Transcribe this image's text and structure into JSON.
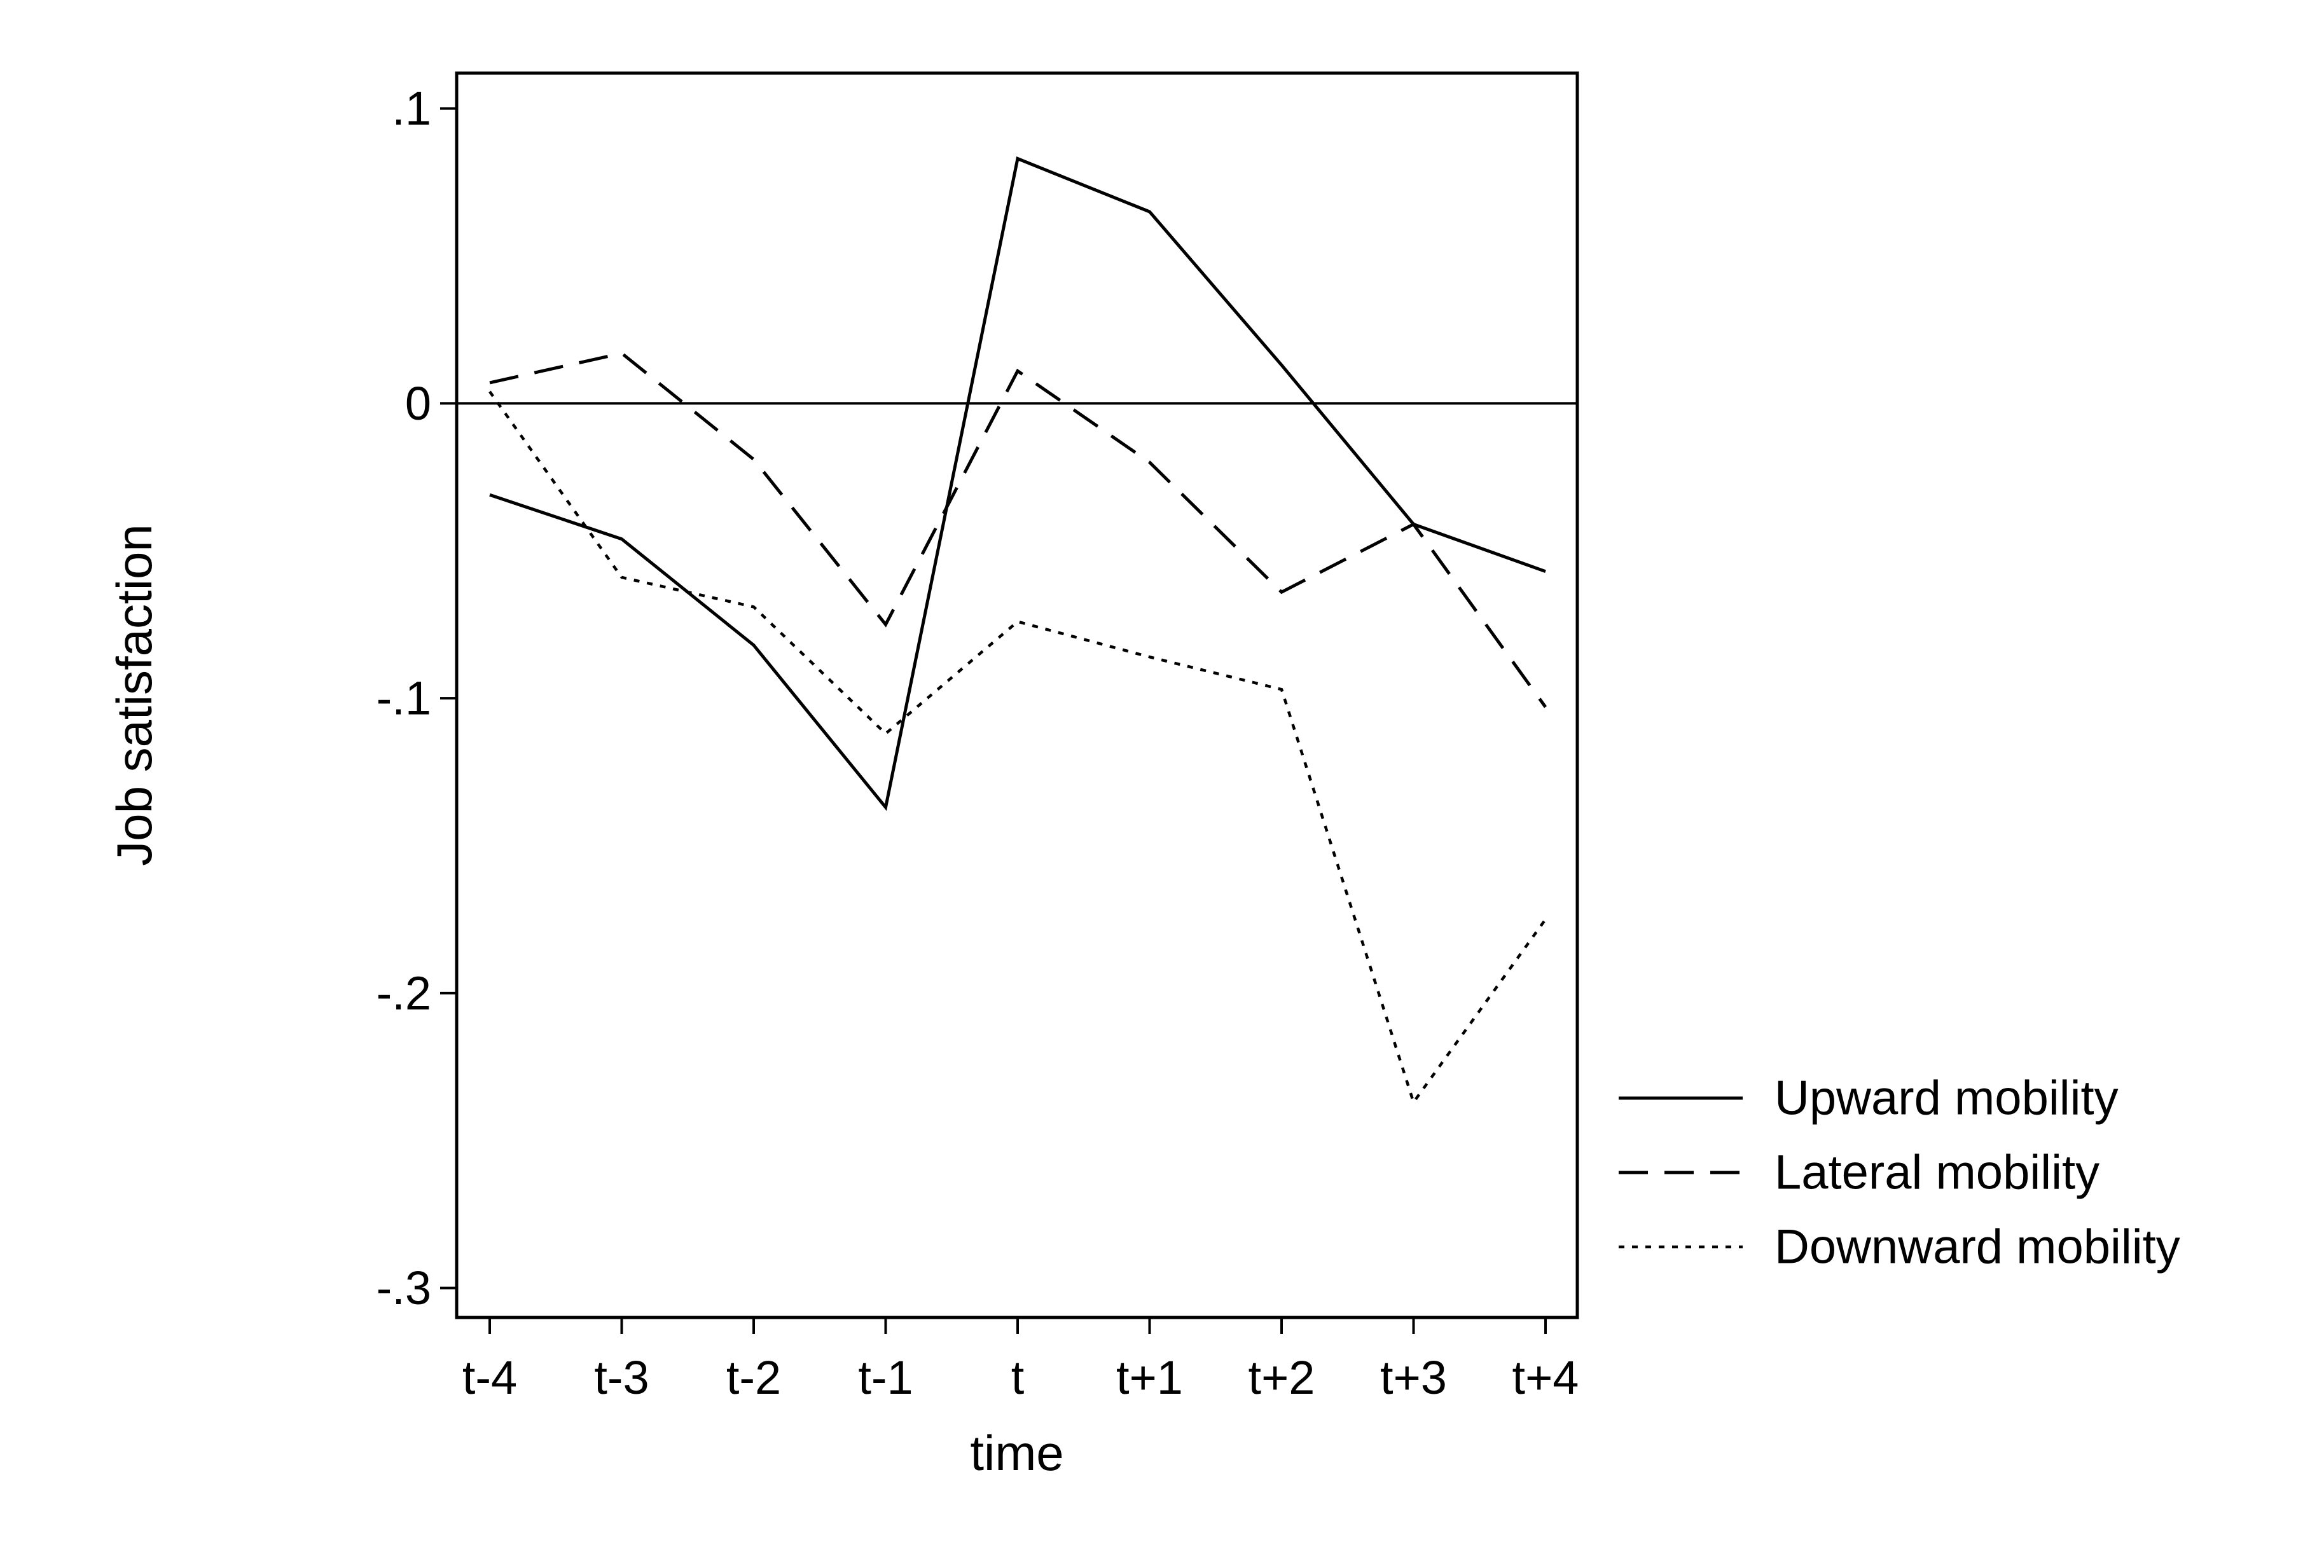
{
  "chart_data": {
    "type": "line",
    "title": "",
    "xlabel": "time",
    "ylabel": "Job satisfaction",
    "categories": [
      "t-4",
      "t-3",
      "t-2",
      "t-1",
      "t",
      "t+1",
      "t+2",
      "t+3",
      "t+4"
    ],
    "ylim": [
      -0.31,
      0.112
    ],
    "yticks": [
      {
        "value": 0.1,
        "label": ".1"
      },
      {
        "value": 0,
        "label": "0"
      },
      {
        "value": -0.1,
        "label": "-.1"
      },
      {
        "value": -0.2,
        "label": "-.2"
      },
      {
        "value": -0.3,
        "label": "-.3"
      }
    ],
    "reference_line": 0,
    "grid": false,
    "legend_position": "right",
    "series": [
      {
        "name": "Upward mobility",
        "style": "solid",
        "color": "#000000",
        "values": [
          -0.031,
          -0.046,
          -0.082,
          -0.137,
          0.083,
          0.065,
          0.013,
          -0.041,
          -0.057
        ]
      },
      {
        "name": "Lateral mobility",
        "style": "dashed",
        "color": "#000000",
        "values": [
          0.007,
          0.017,
          -0.019,
          -0.075,
          0.011,
          -0.02,
          -0.064,
          -0.041,
          -0.103
        ]
      },
      {
        "name": "Downward mobility",
        "style": "dotted",
        "color": "#000000",
        "values": [
          0.004,
          -0.059,
          -0.069,
          -0.112,
          -0.074,
          -0.086,
          -0.097,
          -0.237,
          -0.175
        ]
      }
    ]
  }
}
